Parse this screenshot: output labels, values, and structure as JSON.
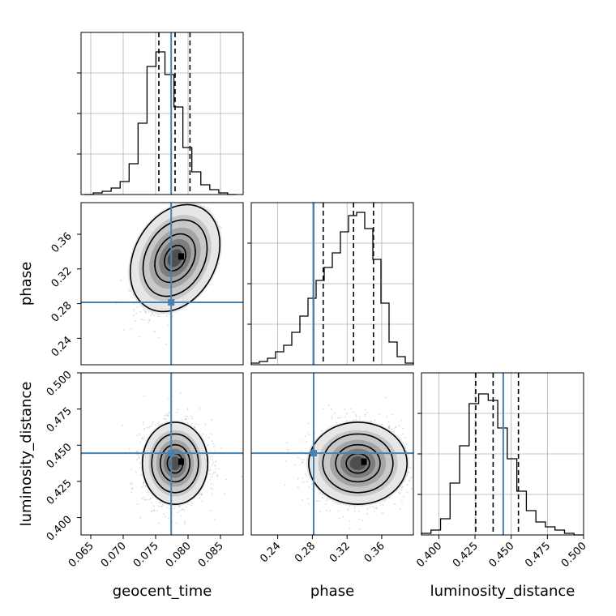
{
  "chart_data": {
    "type": "corner",
    "parameters": [
      "geocent_time",
      "phase",
      "luminosity_distance"
    ],
    "ranges": {
      "geocent_time": [
        0.0635,
        0.0885
      ],
      "phase": [
        0.2095,
        0.3965
      ],
      "luminosity_distance": [
        0.388,
        0.5
      ]
    },
    "ticks": {
      "geocent_time": [
        "0.065",
        "0.070",
        "0.075",
        "0.080",
        "0.085"
      ],
      "phase": [
        "0.24",
        "0.28",
        "0.32",
        "0.36"
      ],
      "luminosity_distance": [
        "0.400",
        "0.425",
        "0.450",
        "0.475",
        "0.500"
      ]
    },
    "injection": {
      "geocent_time": 0.0774,
      "phase": 0.2815,
      "luminosity_distance": 0.4445
    },
    "quantiles": {
      "geocent_time": [
        0.0755,
        0.078,
        0.0803
      ],
      "phase": [
        0.2925,
        0.3275,
        0.3505
      ],
      "luminosity_distance": [
        0.4255,
        0.4375,
        0.455
      ]
    },
    "histograms": {
      "geocent_time": [
        0,
        0.01,
        0.02,
        0.04,
        0.08,
        0.19,
        0.44,
        0.79,
        0.88,
        0.74,
        0.54,
        0.29,
        0.14,
        0.06,
        0.03,
        0.01,
        0
      ],
      "phase": [
        0.01,
        0.02,
        0.04,
        0.08,
        0.12,
        0.2,
        0.3,
        0.41,
        0.52,
        0.6,
        0.69,
        0.82,
        0.92,
        0.94,
        0.84,
        0.65,
        0.38,
        0.14,
        0.05,
        0.01
      ],
      "luminosity_distance": [
        0.01,
        0.03,
        0.1,
        0.32,
        0.55,
        0.81,
        0.87,
        0.83,
        0.66,
        0.47,
        0.27,
        0.15,
        0.08,
        0.05,
        0.03,
        0.01,
        0
      ]
    },
    "grid": true,
    "colors": {
      "injection": "#4682b4",
      "histogram": "#000000",
      "quantile": "#000000",
      "samples": "#aaaaaa",
      "grid": "#b0b0b0"
    }
  }
}
